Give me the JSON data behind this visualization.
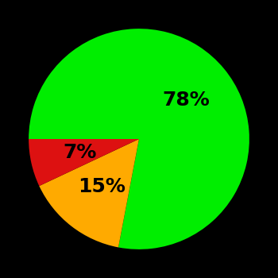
{
  "slices": [
    78,
    15,
    7
  ],
  "colors": [
    "#00ee00",
    "#ffaa00",
    "#dd1111"
  ],
  "labels": [
    "78%",
    "15%",
    "7%"
  ],
  "background_color": "#000000",
  "label_fontsize": 18,
  "label_fontweight": "bold",
  "startangle": 180,
  "counterclock": false,
  "label_radii": [
    0.55,
    0.55,
    0.55
  ]
}
